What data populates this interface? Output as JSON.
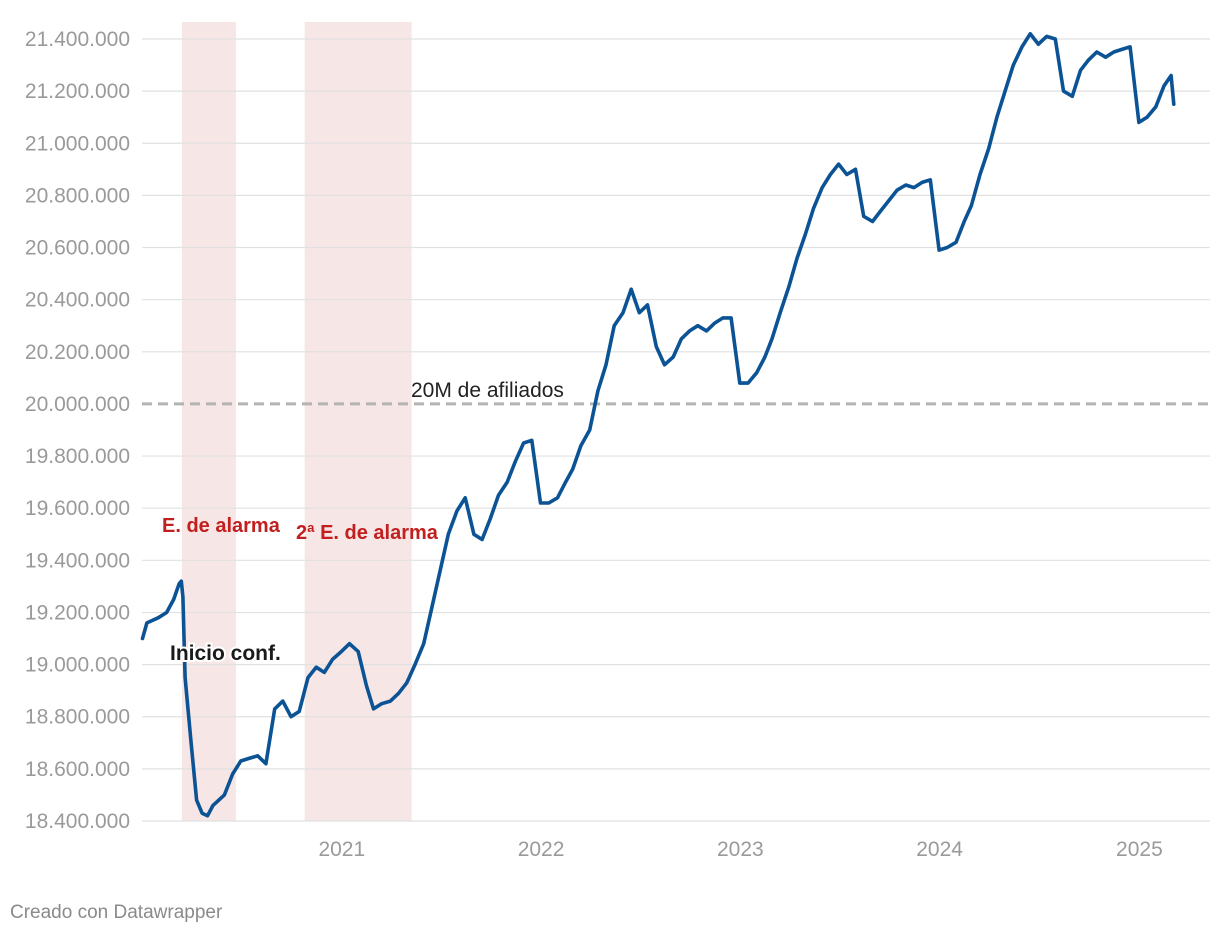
{
  "chart_data": {
    "type": "line",
    "title": "",
    "xlabel": "",
    "ylabel": "",
    "ylim": [
      18400000,
      21450000
    ],
    "xlim": [
      "2020-01-01",
      "2025-03-31"
    ],
    "y_ticks": [
      18400000,
      18600000,
      18800000,
      19000000,
      19200000,
      19400000,
      19600000,
      19800000,
      20000000,
      20200000,
      20400000,
      20600000,
      20800000,
      21000000,
      21200000,
      21400000
    ],
    "y_tick_labels": [
      "18.400.000",
      "18.600.000",
      "18.800.000",
      "19.000.000",
      "19.200.000",
      "19.400.000",
      "19.600.000",
      "19.800.000",
      "20.000.000",
      "20.200.000",
      "20.400.000",
      "20.600.000",
      "20.800.000",
      "21.000.000",
      "21.200.000",
      "21.400.000"
    ],
    "x_ticks": [
      "2021-01-01",
      "2022-01-01",
      "2023-01-01",
      "2024-01-01",
      "2025-01-01"
    ],
    "x_tick_labels": [
      "2021",
      "2022",
      "2023",
      "2024",
      "2025"
    ],
    "grid": true,
    "series": [
      {
        "color": "#0b5394",
        "points": [
          [
            "2020-01-02",
            19100000
          ],
          [
            "2020-01-10",
            19160000
          ],
          [
            "2020-01-31",
            19180000
          ],
          [
            "2020-02-15",
            19200000
          ],
          [
            "2020-02-28",
            19250000
          ],
          [
            "2020-03-09",
            19310000
          ],
          [
            "2020-03-13",
            19320000
          ],
          [
            "2020-03-16",
            19260000
          ],
          [
            "2020-03-20",
            18950000
          ],
          [
            "2020-03-31",
            18700000
          ],
          [
            "2020-04-10",
            18480000
          ],
          [
            "2020-04-20",
            18430000
          ],
          [
            "2020-04-30",
            18420000
          ],
          [
            "2020-05-10",
            18460000
          ],
          [
            "2020-05-31",
            18500000
          ],
          [
            "2020-06-15",
            18580000
          ],
          [
            "2020-06-30",
            18630000
          ],
          [
            "2020-07-15",
            18640000
          ],
          [
            "2020-07-31",
            18650000
          ],
          [
            "2020-08-15",
            18620000
          ],
          [
            "2020-08-31",
            18830000
          ],
          [
            "2020-09-15",
            18860000
          ],
          [
            "2020-09-30",
            18800000
          ],
          [
            "2020-10-15",
            18820000
          ],
          [
            "2020-10-31",
            18950000
          ],
          [
            "2020-11-15",
            18990000
          ],
          [
            "2020-11-30",
            18970000
          ],
          [
            "2020-12-15",
            19020000
          ],
          [
            "2020-12-31",
            19050000
          ],
          [
            "2021-01-15",
            19080000
          ],
          [
            "2021-01-31",
            19050000
          ],
          [
            "2021-02-15",
            18920000
          ],
          [
            "2021-02-28",
            18830000
          ],
          [
            "2021-03-15",
            18850000
          ],
          [
            "2021-03-31",
            18860000
          ],
          [
            "2021-04-15",
            18890000
          ],
          [
            "2021-04-30",
            18930000
          ],
          [
            "2021-05-15",
            19000000
          ],
          [
            "2021-05-31",
            19080000
          ],
          [
            "2021-06-15",
            19220000
          ],
          [
            "2021-06-30",
            19360000
          ],
          [
            "2021-07-15",
            19500000
          ],
          [
            "2021-07-31",
            19590000
          ],
          [
            "2021-08-15",
            19640000
          ],
          [
            "2021-08-31",
            19500000
          ],
          [
            "2021-09-15",
            19480000
          ],
          [
            "2021-09-30",
            19560000
          ],
          [
            "2021-10-15",
            19650000
          ],
          [
            "2021-10-31",
            19700000
          ],
          [
            "2021-11-15",
            19780000
          ],
          [
            "2021-11-30",
            19850000
          ],
          [
            "2021-12-15",
            19860000
          ],
          [
            "2021-12-31",
            19620000
          ],
          [
            "2022-01-15",
            19620000
          ],
          [
            "2022-01-31",
            19640000
          ],
          [
            "2022-02-15",
            19700000
          ],
          [
            "2022-02-28",
            19750000
          ],
          [
            "2022-03-15",
            19840000
          ],
          [
            "2022-03-31",
            19900000
          ],
          [
            "2022-04-15",
            20050000
          ],
          [
            "2022-04-30",
            20150000
          ],
          [
            "2022-05-15",
            20300000
          ],
          [
            "2022-05-31",
            20350000
          ],
          [
            "2022-06-15",
            20440000
          ],
          [
            "2022-06-30",
            20350000
          ],
          [
            "2022-07-15",
            20380000
          ],
          [
            "2022-07-31",
            20220000
          ],
          [
            "2022-08-15",
            20150000
          ],
          [
            "2022-08-31",
            20180000
          ],
          [
            "2022-09-15",
            20250000
          ],
          [
            "2022-09-30",
            20280000
          ],
          [
            "2022-10-15",
            20300000
          ],
          [
            "2022-10-31",
            20280000
          ],
          [
            "2022-11-15",
            20310000
          ],
          [
            "2022-11-30",
            20330000
          ],
          [
            "2022-12-15",
            20330000
          ],
          [
            "2022-12-31",
            20080000
          ],
          [
            "2023-01-15",
            20080000
          ],
          [
            "2023-01-31",
            20120000
          ],
          [
            "2023-02-15",
            20180000
          ],
          [
            "2023-02-28",
            20250000
          ],
          [
            "2023-03-15",
            20350000
          ],
          [
            "2023-03-31",
            20450000
          ],
          [
            "2023-04-15",
            20560000
          ],
          [
            "2023-04-30",
            20650000
          ],
          [
            "2023-05-15",
            20750000
          ],
          [
            "2023-05-31",
            20830000
          ],
          [
            "2023-06-15",
            20880000
          ],
          [
            "2023-06-30",
            20920000
          ],
          [
            "2023-07-15",
            20880000
          ],
          [
            "2023-07-31",
            20900000
          ],
          [
            "2023-08-15",
            20720000
          ],
          [
            "2023-08-31",
            20700000
          ],
          [
            "2023-09-15",
            20740000
          ],
          [
            "2023-09-30",
            20780000
          ],
          [
            "2023-10-15",
            20820000
          ],
          [
            "2023-10-31",
            20840000
          ],
          [
            "2023-11-15",
            20830000
          ],
          [
            "2023-11-30",
            20850000
          ],
          [
            "2023-12-15",
            20860000
          ],
          [
            "2023-12-31",
            20590000
          ],
          [
            "2024-01-15",
            20600000
          ],
          [
            "2024-01-31",
            20620000
          ],
          [
            "2024-02-15",
            20700000
          ],
          [
            "2024-02-28",
            20760000
          ],
          [
            "2024-03-15",
            20880000
          ],
          [
            "2024-03-31",
            20980000
          ],
          [
            "2024-04-15",
            21100000
          ],
          [
            "2024-04-30",
            21200000
          ],
          [
            "2024-05-15",
            21300000
          ],
          [
            "2024-05-31",
            21370000
          ],
          [
            "2024-06-15",
            21420000
          ],
          [
            "2024-06-30",
            21380000
          ],
          [
            "2024-07-15",
            21410000
          ],
          [
            "2024-07-31",
            21400000
          ],
          [
            "2024-08-15",
            21200000
          ],
          [
            "2024-08-31",
            21180000
          ],
          [
            "2024-09-15",
            21280000
          ],
          [
            "2024-09-30",
            21320000
          ],
          [
            "2024-10-15",
            21350000
          ],
          [
            "2024-10-31",
            21330000
          ],
          [
            "2024-11-15",
            21350000
          ],
          [
            "2024-11-30",
            21360000
          ],
          [
            "2024-12-15",
            21370000
          ],
          [
            "2024-12-31",
            21080000
          ],
          [
            "2025-01-15",
            21100000
          ],
          [
            "2025-01-31",
            21140000
          ],
          [
            "2025-02-15",
            21220000
          ],
          [
            "2025-02-28",
            21260000
          ],
          [
            "2025-03-05",
            21150000
          ]
        ]
      }
    ],
    "shaded_periods": [
      {
        "start": "2020-03-14",
        "end": "2020-06-21",
        "color": "#f7e6e6"
      },
      {
        "start": "2020-10-25",
        "end": "2021-05-09",
        "color": "#f7e6e6"
      }
    ],
    "reference_line": {
      "y": 20000000,
      "label": "20M de afiliados",
      "color": "#b3b3b3"
    },
    "annotations": {
      "inicio": "Inicio conf.",
      "alarma1": "E. de alarma",
      "alarma2": "2ª E. de alarma"
    }
  },
  "credit": "Creado con Datawrapper"
}
